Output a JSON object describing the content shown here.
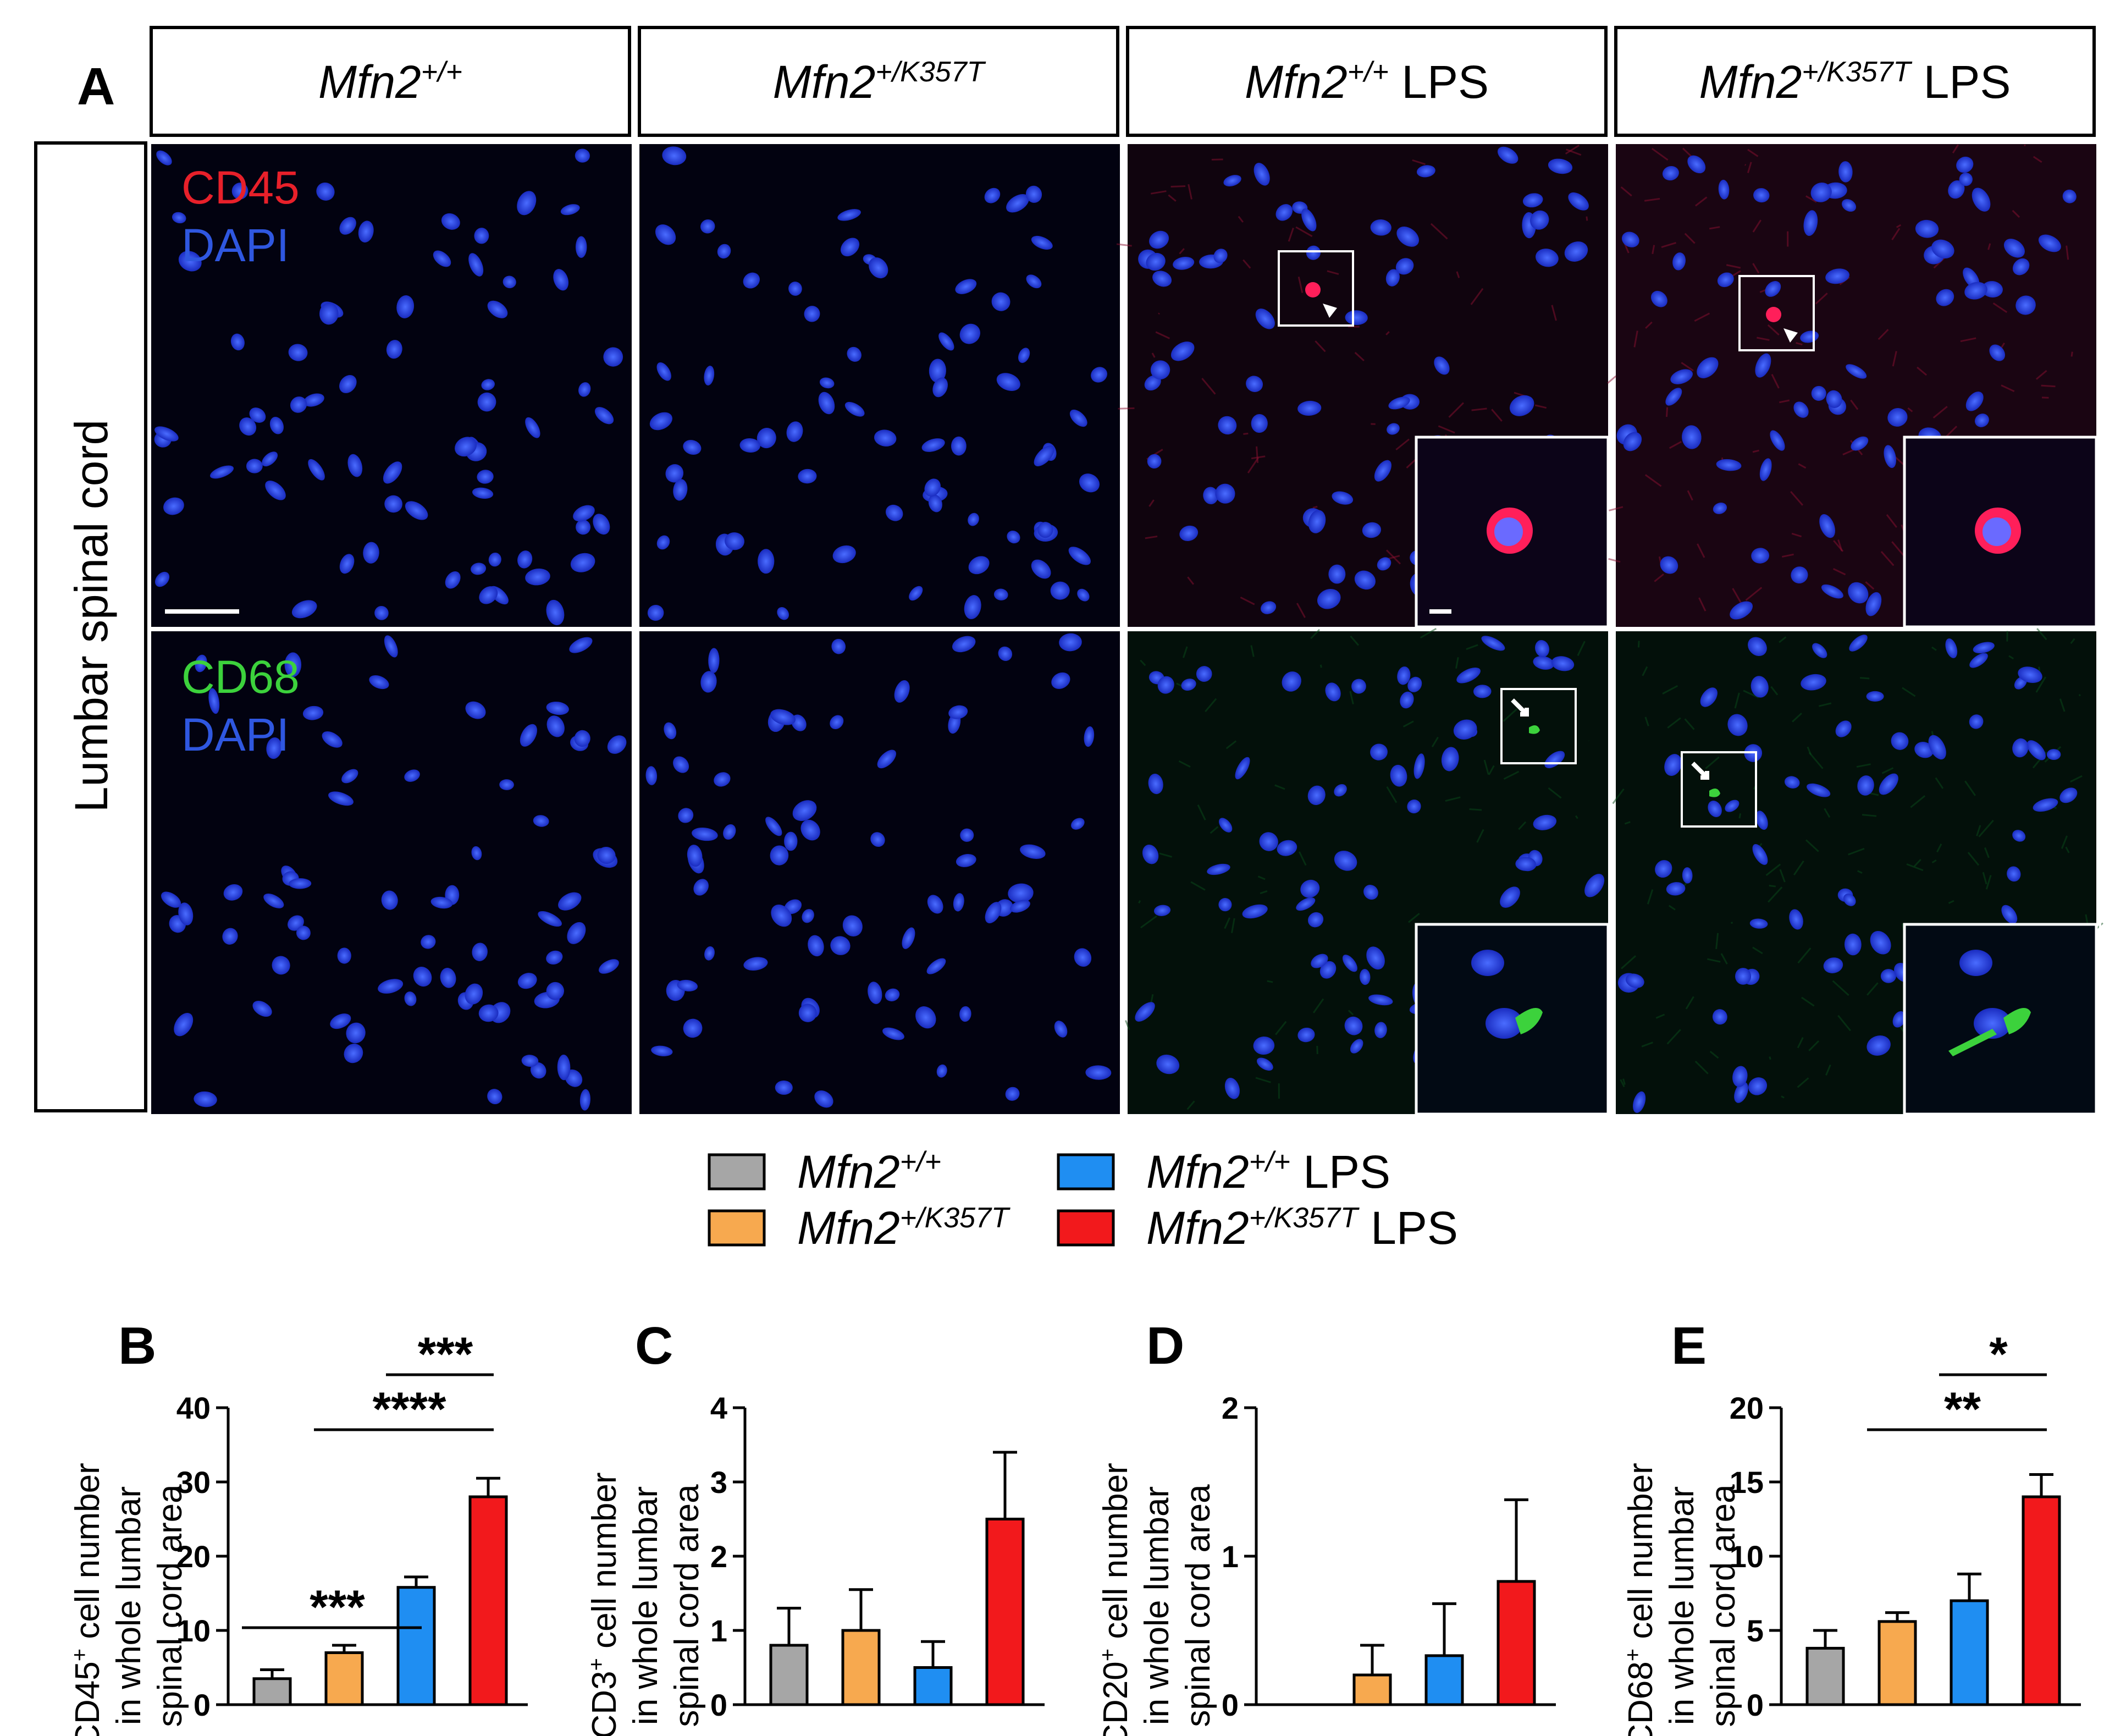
{
  "panel_letters": {
    "A": "A",
    "B": "B",
    "C": "C",
    "D": "D",
    "E": "E"
  },
  "columns": [
    {
      "gene": "Mfn2",
      "sup": "+/+",
      "suffix": ""
    },
    {
      "gene": "Mfn2",
      "sup": "+/K357T",
      "suffix": ""
    },
    {
      "gene": "Mfn2",
      "sup": "+/+",
      "suffix": " LPS"
    },
    {
      "gene": "Mfn2",
      "sup": "+/K357T",
      "suffix": " LPS"
    }
  ],
  "row_label": "Lumbar spinal cord",
  "stains": {
    "top": {
      "marker": "CD45",
      "marker_color": "#e8202a",
      "dapi": "DAPI",
      "dapi_color": "#2f57e0"
    },
    "bottom": {
      "marker": "CD68",
      "marker_color": "#3cd23c",
      "dapi": "DAPI",
      "dapi_color": "#2f57e0"
    }
  },
  "legend": [
    {
      "gene": "Mfn2",
      "sup": "+/+",
      "suffix": "",
      "color": "#a6a6a6"
    },
    {
      "gene": "Mfn2",
      "sup": "+/K357T",
      "suffix": "",
      "color": "#f7a94f"
    },
    {
      "gene": "Mfn2",
      "sup": "+/+",
      "suffix": " LPS",
      "color": "#1f8ef2"
    },
    {
      "gene": "Mfn2",
      "sup": "+/K357T",
      "suffix": " LPS",
      "color": "#f2191c"
    }
  ],
  "ylabel_common": {
    "line2": "in whole lumbar",
    "line3": "spinal cord area"
  },
  "chart_data": [
    {
      "panel": "B",
      "type": "bar",
      "title": "",
      "ylabel": {
        "marker": "CD45",
        "sup": "+",
        "rest": " cell number"
      },
      "ylim": [
        0,
        40
      ],
      "yticks": [
        0,
        10,
        20,
        30,
        40
      ],
      "values": [
        3.5,
        7,
        15.8,
        28
      ],
      "errors": [
        1.2,
        1.0,
        1.4,
        2.5
      ],
      "significance": [
        {
          "from": 0,
          "to": 2,
          "label": "***"
        },
        {
          "from": 1,
          "to": 3,
          "label": "****"
        },
        {
          "from": 2,
          "to": 3,
          "label": "***"
        }
      ]
    },
    {
      "panel": "C",
      "type": "bar",
      "title": "",
      "ylabel": {
        "marker": "CD3",
        "sup": "+",
        "rest": " cell number"
      },
      "ylim": [
        0,
        4
      ],
      "yticks": [
        0,
        1,
        2,
        3,
        4
      ],
      "values": [
        0.8,
        1.0,
        0.5,
        2.5
      ],
      "errors": [
        0.5,
        0.55,
        0.35,
        0.9
      ],
      "significance": []
    },
    {
      "panel": "D",
      "type": "bar",
      "title": "",
      "ylabel": {
        "marker": "CD20",
        "sup": "+",
        "rest": " cell number"
      },
      "ylim": [
        0,
        2
      ],
      "yticks": [
        0,
        1,
        2
      ],
      "values": [
        0,
        0.2,
        0.33,
        0.83
      ],
      "errors": [
        0,
        0.2,
        0.35,
        0.55
      ],
      "significance": []
    },
    {
      "panel": "E",
      "type": "bar",
      "title": "",
      "ylabel": {
        "marker": "CD68",
        "sup": "+",
        "rest": " cell number"
      },
      "ylim": [
        0,
        20
      ],
      "yticks": [
        0,
        5,
        10,
        15,
        20
      ],
      "values": [
        3.8,
        5.6,
        7.0,
        14.0
      ],
      "errors": [
        1.2,
        0.6,
        1.8,
        1.5
      ],
      "significance": [
        {
          "from": 1,
          "to": 3,
          "label": "**"
        },
        {
          "from": 2,
          "to": 3,
          "label": "*"
        }
      ]
    }
  ]
}
